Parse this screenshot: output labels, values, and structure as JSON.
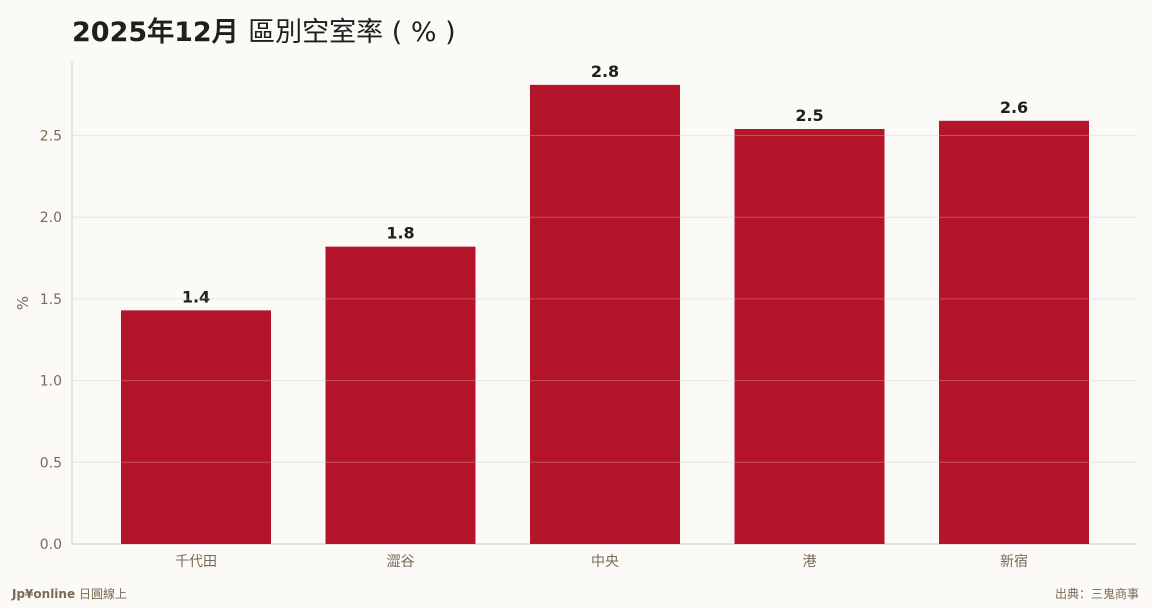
{
  "colors": {
    "bar": "#b5152b",
    "grid": "#e3e0da",
    "axis": "#cccccc",
    "tick_text": "#7a6a55",
    "label_text": "#1f1f1f",
    "background": "#fbfaf7"
  },
  "footer": {
    "brand": "Jp¥online",
    "brand_sub": "日圓線上",
    "source": "出典：三鬼商事"
  },
  "chart_data": {
    "type": "bar",
    "title_main": "2025年12月",
    "title_sub": "區別空室率 ( % )",
    "categories": [
      "千代田",
      "澀谷",
      "中央",
      "港",
      "新宿"
    ],
    "values": [
      1.43,
      1.82,
      2.81,
      2.54,
      2.59
    ],
    "data_labels": [
      "1.4",
      "1.8",
      "2.8",
      "2.5",
      "2.6"
    ],
    "ylabel": "%",
    "xlabel": "",
    "ylim": [
      0,
      2.95
    ],
    "yticks": [
      0.0,
      0.5,
      1.0,
      1.5,
      2.0,
      2.5
    ],
    "ytick_labels": [
      "0.0",
      "0.5",
      "1.0",
      "1.5",
      "2.0",
      "2.5"
    ],
    "grid": true,
    "legend": "none"
  }
}
